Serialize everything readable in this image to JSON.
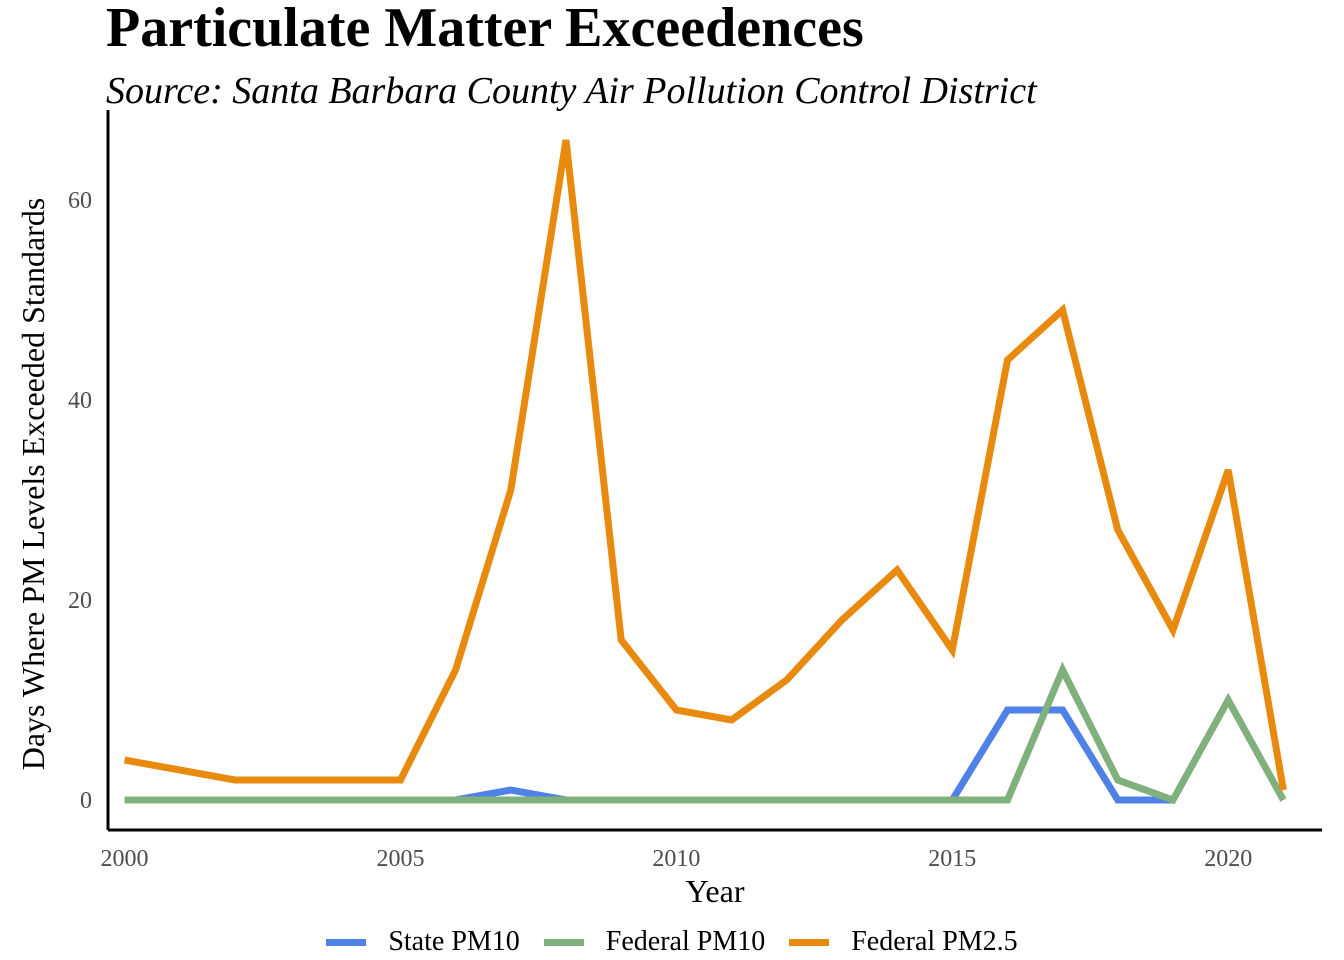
{
  "header": {
    "title": "Particulate Matter Exceedences",
    "subtitle": "Source: Santa Barbara County Air Pollution Control District"
  },
  "chart_data": {
    "type": "line",
    "title": "Particulate Matter Exceedences",
    "subtitle": "Source: Santa Barbara County Air Pollution Control District",
    "xlabel": "Year",
    "ylabel": "Days Where PM Levels Exceeded Standards",
    "xlim": [
      1999.7,
      2021.7
    ],
    "ylim": [
      -3,
      69
    ],
    "x_ticks": [
      2000,
      2005,
      2010,
      2015,
      2020
    ],
    "y_ticks": [
      0,
      20,
      40,
      60
    ],
    "grid": false,
    "legend_position": "bottom",
    "x": [
      2000,
      2002,
      2003,
      2004,
      2005,
      2006,
      2007,
      2008,
      2009,
      2010,
      2011,
      2012,
      2013,
      2014,
      2015,
      2016,
      2017,
      2018,
      2019,
      2020,
      2021
    ],
    "series": [
      {
        "name": "State PM10",
        "color": "#5081e6",
        "values": [
          0,
          0,
          0,
          0,
          0,
          0,
          1,
          0,
          0,
          0,
          0,
          0,
          0,
          0,
          0,
          9,
          9,
          0,
          0,
          null,
          null
        ]
      },
      {
        "name": "Federal PM10",
        "color": "#80b07c",
        "values": [
          0,
          0,
          0,
          0,
          0,
          0,
          0,
          0,
          0,
          0,
          0,
          0,
          0,
          0,
          0,
          0,
          13,
          2,
          0,
          10,
          0
        ]
      },
      {
        "name": "Federal PM2.5",
        "color": "#e88a0e",
        "values": [
          4,
          2,
          2,
          2,
          2,
          13,
          31,
          66,
          16,
          9,
          8,
          12,
          18,
          23,
          15,
          44,
          49,
          27,
          17,
          33,
          1
        ]
      }
    ]
  }
}
